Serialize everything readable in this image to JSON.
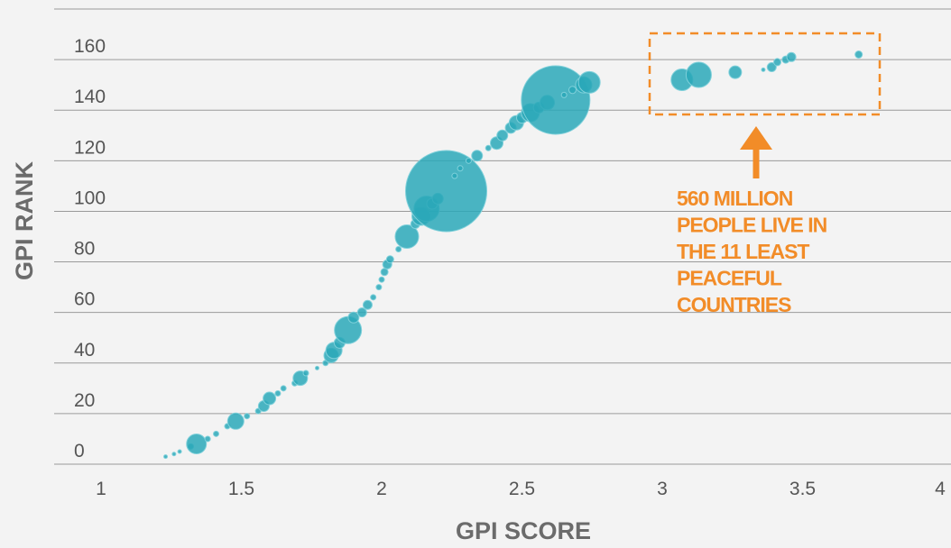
{
  "chart_data": {
    "type": "scatter",
    "x_label": "GPI SCORE",
    "y_label": "GPI RANK",
    "xlim": [
      1,
      4
    ],
    "xticks": [
      1,
      1.5,
      2,
      2.5,
      3,
      3.5,
      4
    ],
    "ylim": [
      0,
      180
    ],
    "yticks": [
      0,
      20,
      40,
      60,
      80,
      100,
      120,
      140,
      160
    ],
    "grid": true,
    "color": "#2aa8b8",
    "annotation": [
      "560 MILLION",
      "PEOPLE LIVE IN",
      "THE 11 LEAST",
      "PEACEFUL",
      "COUNTRIES"
    ],
    "annotation_color": "#f28c28",
    "x": [
      1.23,
      1.26,
      1.28,
      1.32,
      1.34,
      1.38,
      1.41,
      1.45,
      1.48,
      1.52,
      1.56,
      1.58,
      1.6,
      1.63,
      1.65,
      1.69,
      1.71,
      1.73,
      1.77,
      1.8,
      1.82,
      1.83,
      1.85,
      1.88,
      1.9,
      1.93,
      1.95,
      1.97,
      1.99,
      2.0,
      2.01,
      2.02,
      2.03,
      2.06,
      2.09,
      2.12,
      2.14,
      2.16,
      2.18,
      2.2,
      2.23,
      2.26,
      2.28,
      2.31,
      2.34,
      2.38,
      2.41,
      2.43,
      2.46,
      2.48,
      2.5,
      2.53,
      2.56,
      2.59,
      2.62,
      2.65,
      2.68,
      2.72,
      2.74,
      3.07,
      3.13,
      3.26,
      3.36,
      3.39,
      3.41,
      3.44,
      3.46,
      3.7
    ],
    "values": [
      3,
      4,
      5,
      7,
      8,
      10,
      12,
      15,
      17,
      19,
      21,
      23,
      26,
      28,
      30,
      32,
      34,
      36,
      38,
      40,
      43,
      45,
      48,
      53,
      58,
      60,
      63,
      66,
      70,
      73,
      76,
      79,
      81,
      85,
      90,
      95,
      98,
      101,
      103,
      105,
      108,
      114,
      117,
      120,
      122,
      125,
      127,
      130,
      133,
      135,
      137,
      139,
      141,
      143,
      144,
      146,
      148,
      150,
      151,
      152,
      154,
      155,
      156,
      157,
      159,
      160,
      161,
      162
    ],
    "sizes": [
      4,
      4,
      4,
      9,
      121,
      9,
      9,
      9,
      81,
      9,
      9,
      36,
      49,
      9,
      9,
      9,
      64,
      9,
      4,
      9,
      64,
      81,
      36,
      225,
      36,
      25,
      25,
      9,
      9,
      9,
      16,
      25,
      16,
      9,
      169,
      25,
      100,
      196,
      36,
      36,
      2025,
      9,
      9,
      9,
      36,
      9,
      49,
      36,
      36,
      64,
      36,
      100,
      36,
      64,
      1444,
      9,
      16,
      81,
      144,
      144,
      196,
      49,
      4,
      25,
      16,
      16,
      25,
      16
    ]
  }
}
